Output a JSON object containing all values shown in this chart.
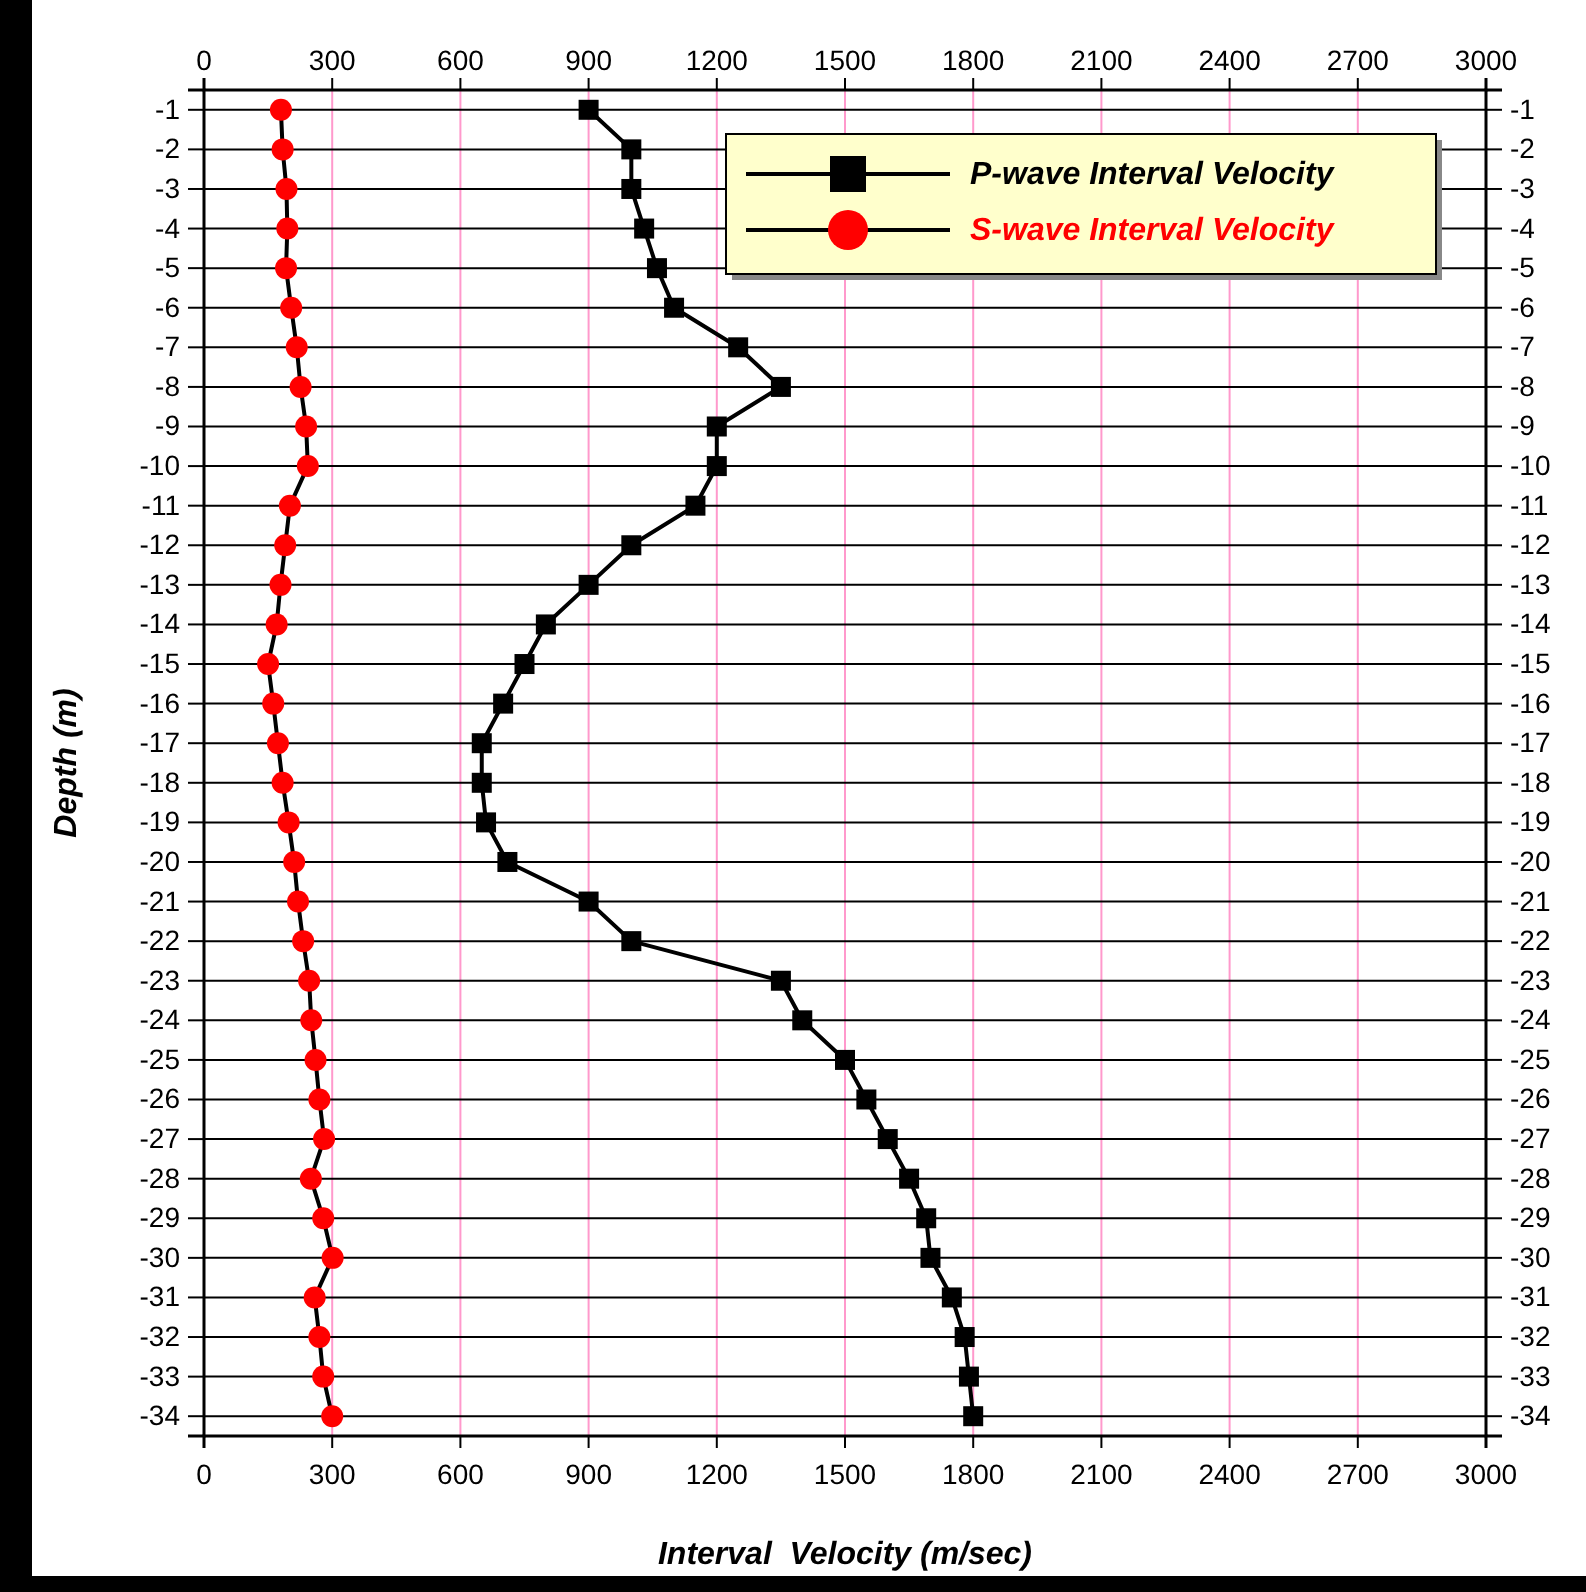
{
  "chart_data": {
    "type": "line",
    "xlabel": "Interval  Velocity (m/sec)",
    "ylabel": "Depth (m)",
    "xlim": [
      0,
      3000
    ],
    "xticks": [
      0,
      300,
      600,
      900,
      1200,
      1500,
      1800,
      2100,
      2400,
      2700,
      3000
    ],
    "x2lim": [
      0,
      3000
    ],
    "x2ticks": [
      0,
      300,
      600,
      900,
      1200,
      1500,
      1800,
      2100,
      2400,
      2700,
      3000
    ],
    "ylim": [
      -34.5,
      -0.5
    ],
    "yticks": [
      -1,
      -2,
      -3,
      -4,
      -5,
      -6,
      -7,
      -8,
      -9,
      -10,
      -11,
      -12,
      -13,
      -14,
      -15,
      -16,
      -17,
      -18,
      -19,
      -20,
      -21,
      -22,
      -23,
      -24,
      -25,
      -26,
      -27,
      -28,
      -29,
      -30,
      -31,
      -32,
      -33,
      -34
    ],
    "y2lim": [
      -34.5,
      -0.5
    ],
    "y2ticks": [
      -1,
      -2,
      -3,
      -4,
      -5,
      -6,
      -7,
      -8,
      -9,
      -10,
      -11,
      -12,
      -13,
      -14,
      -15,
      -16,
      -17,
      -18,
      -19,
      -20,
      -21,
      -22,
      -23,
      -24,
      -25,
      -26,
      -27,
      -28,
      -29,
      -30,
      -31,
      -32,
      -33,
      -34
    ],
    "grid": true,
    "legend": "top right",
    "series": [
      {
        "name": "P-wave Interval Velocity",
        "color": "#000000",
        "marker": "square",
        "line_style": "solid",
        "x": [
          900,
          1000,
          1000,
          1030,
          1060,
          1100,
          1250,
          1350,
          1200,
          1200,
          1150,
          1000,
          900,
          800,
          750,
          700,
          650,
          650,
          660,
          710,
          900,
          1000,
          1350,
          1400,
          1500,
          1550,
          1600,
          1650,
          1690,
          1700,
          1750,
          1780,
          1790,
          1800
        ],
        "values": [
          -1,
          -2,
          -3,
          -4,
          -5,
          -6,
          -7,
          -8,
          -9,
          -10,
          -11,
          -12,
          -13,
          -14,
          -15,
          -16,
          -17,
          -18,
          -19,
          -20,
          -21,
          -22,
          -23,
          -24,
          -25,
          -26,
          -27,
          -28,
          -29,
          -30,
          -31,
          -32,
          -33,
          -34
        ]
      },
      {
        "name": "S-wave Interval Velocity",
        "color": "#ff0000",
        "marker": "circle",
        "line_style": "solid",
        "x": [
          180,
          184,
          193,
          195,
          192,
          204,
          217,
          226,
          239,
          243,
          201,
          190,
          179,
          170,
          150,
          162,
          173,
          184,
          198,
          211,
          220,
          232,
          246,
          251,
          261,
          270,
          281,
          250,
          279,
          301,
          259,
          270,
          279,
          300
        ],
        "values": [
          -1,
          -2,
          -3,
          -4,
          -5,
          -6,
          -7,
          -8,
          -9,
          -10,
          -11,
          -12,
          -13,
          -14,
          -15,
          -16,
          -17,
          -18,
          -19,
          -20,
          -21,
          -22,
          -23,
          -24,
          -25,
          -26,
          -27,
          -28,
          -29,
          -30,
          -31,
          -32,
          -33,
          -34
        ]
      }
    ]
  }
}
